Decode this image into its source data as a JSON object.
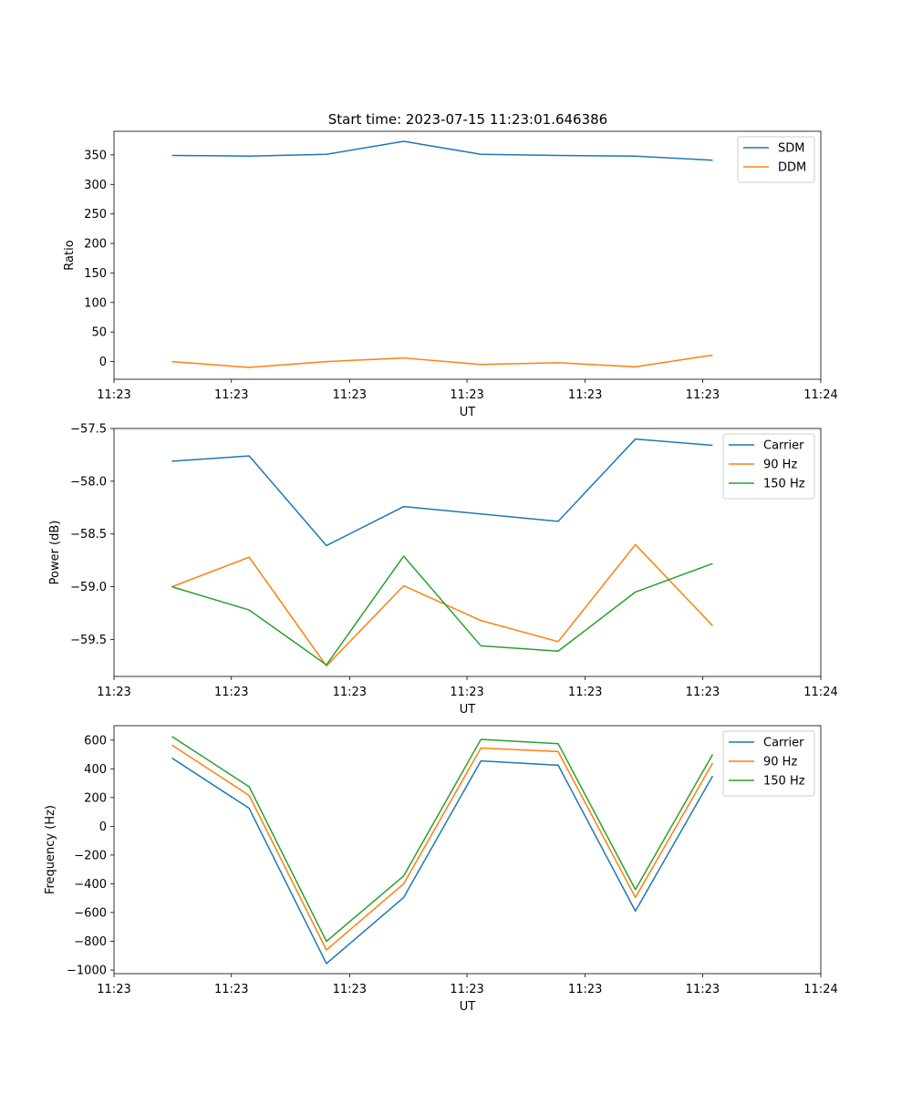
{
  "figure": {
    "title": "Start time: 2023-07-15 11:23:01.646386"
  },
  "chart_data": [
    {
      "type": "line",
      "ylabel": "Ratio",
      "xlabel": "UT",
      "x": [
        0,
        1,
        2,
        3,
        4,
        5,
        6,
        7
      ],
      "xlim": [
        -0.75,
        8.4
      ],
      "xtick_values": [
        -0.75,
        0.77,
        2.3,
        3.82,
        5.35,
        6.87,
        8.4
      ],
      "xtick_labels": [
        "11:23",
        "11:23",
        "11:23",
        "11:23",
        "11:23",
        "11:23",
        "11:24"
      ],
      "ylim": [
        -30,
        390
      ],
      "yticks": [
        0,
        50,
        100,
        150,
        200,
        250,
        300,
        350
      ],
      "ytick_labels": [
        "0",
        "50",
        "100",
        "150",
        "200",
        "250",
        "300",
        "350"
      ],
      "legend_position": "top-right",
      "series": [
        {
          "name": "SDM",
          "color": "#1f77b4",
          "values": [
            349,
            348,
            351,
            373,
            351,
            349,
            348,
            341
          ]
        },
        {
          "name": "DDM",
          "color": "#ff7f0e",
          "values": [
            0,
            -10,
            0,
            6,
            -5,
            -2,
            -9,
            11
          ]
        }
      ]
    },
    {
      "type": "line",
      "ylabel": "Power (dB)",
      "xlabel": "UT",
      "x": [
        0,
        1,
        2,
        3,
        4,
        5,
        6,
        7
      ],
      "xlim": [
        -0.75,
        8.4
      ],
      "xtick_values": [
        -0.75,
        0.77,
        2.3,
        3.82,
        5.35,
        6.87,
        8.4
      ],
      "xtick_labels": [
        "11:23",
        "11:23",
        "11:23",
        "11:23",
        "11:23",
        "11:23",
        "11:24"
      ],
      "ylim": [
        -59.85,
        -57.5
      ],
      "yticks": [
        -59.5,
        -59.0,
        -58.5,
        -58.0,
        -57.5
      ],
      "ytick_labels": [
        "−59.5",
        "−59.0",
        "−58.5",
        "−58.0",
        "−57.5"
      ],
      "legend_position": "top-right",
      "series": [
        {
          "name": "Carrier",
          "color": "#1f77b4",
          "values": [
            -57.81,
            -57.76,
            -58.61,
            -58.24,
            -58.31,
            -58.38,
            -57.6,
            -57.66
          ]
        },
        {
          "name": "90 Hz",
          "color": "#ff7f0e",
          "values": [
            -59.0,
            -58.72,
            -59.75,
            -58.99,
            -59.32,
            -59.52,
            -58.6,
            -59.37
          ]
        },
        {
          "name": "150 Hz",
          "color": "#2ca02c",
          "values": [
            -59.0,
            -59.22,
            -59.74,
            -58.71,
            -59.56,
            -59.61,
            -59.05,
            -58.78
          ]
        }
      ]
    },
    {
      "type": "line",
      "ylabel": "Frequency (Hz)",
      "xlabel": "UT",
      "x": [
        0,
        1,
        2,
        3,
        4,
        5,
        6,
        7
      ],
      "xlim": [
        -0.75,
        8.4
      ],
      "xtick_values": [
        -0.75,
        0.77,
        2.3,
        3.82,
        5.35,
        6.87,
        8.4
      ],
      "xtick_labels": [
        "11:23",
        "11:23",
        "11:23",
        "11:23",
        "11:23",
        "11:23",
        "11:24"
      ],
      "ylim": [
        -1025,
        700
      ],
      "yticks": [
        -1000,
        -800,
        -600,
        -400,
        -200,
        0,
        200,
        400,
        600
      ],
      "ytick_labels": [
        "−1000",
        "−800",
        "−600",
        "−400",
        "−200",
        "0",
        "200",
        "400",
        "600"
      ],
      "legend_position": "top-right",
      "series": [
        {
          "name": "Carrier",
          "color": "#1f77b4",
          "values": [
            475,
            125,
            -955,
            -495,
            455,
            425,
            -590,
            350
          ]
        },
        {
          "name": "90 Hz",
          "color": "#ff7f0e",
          "values": [
            565,
            215,
            -860,
            -400,
            545,
            520,
            -495,
            440
          ]
        },
        {
          "name": "150 Hz",
          "color": "#2ca02c",
          "values": [
            625,
            275,
            -800,
            -345,
            605,
            575,
            -440,
            500
          ]
        }
      ]
    }
  ]
}
